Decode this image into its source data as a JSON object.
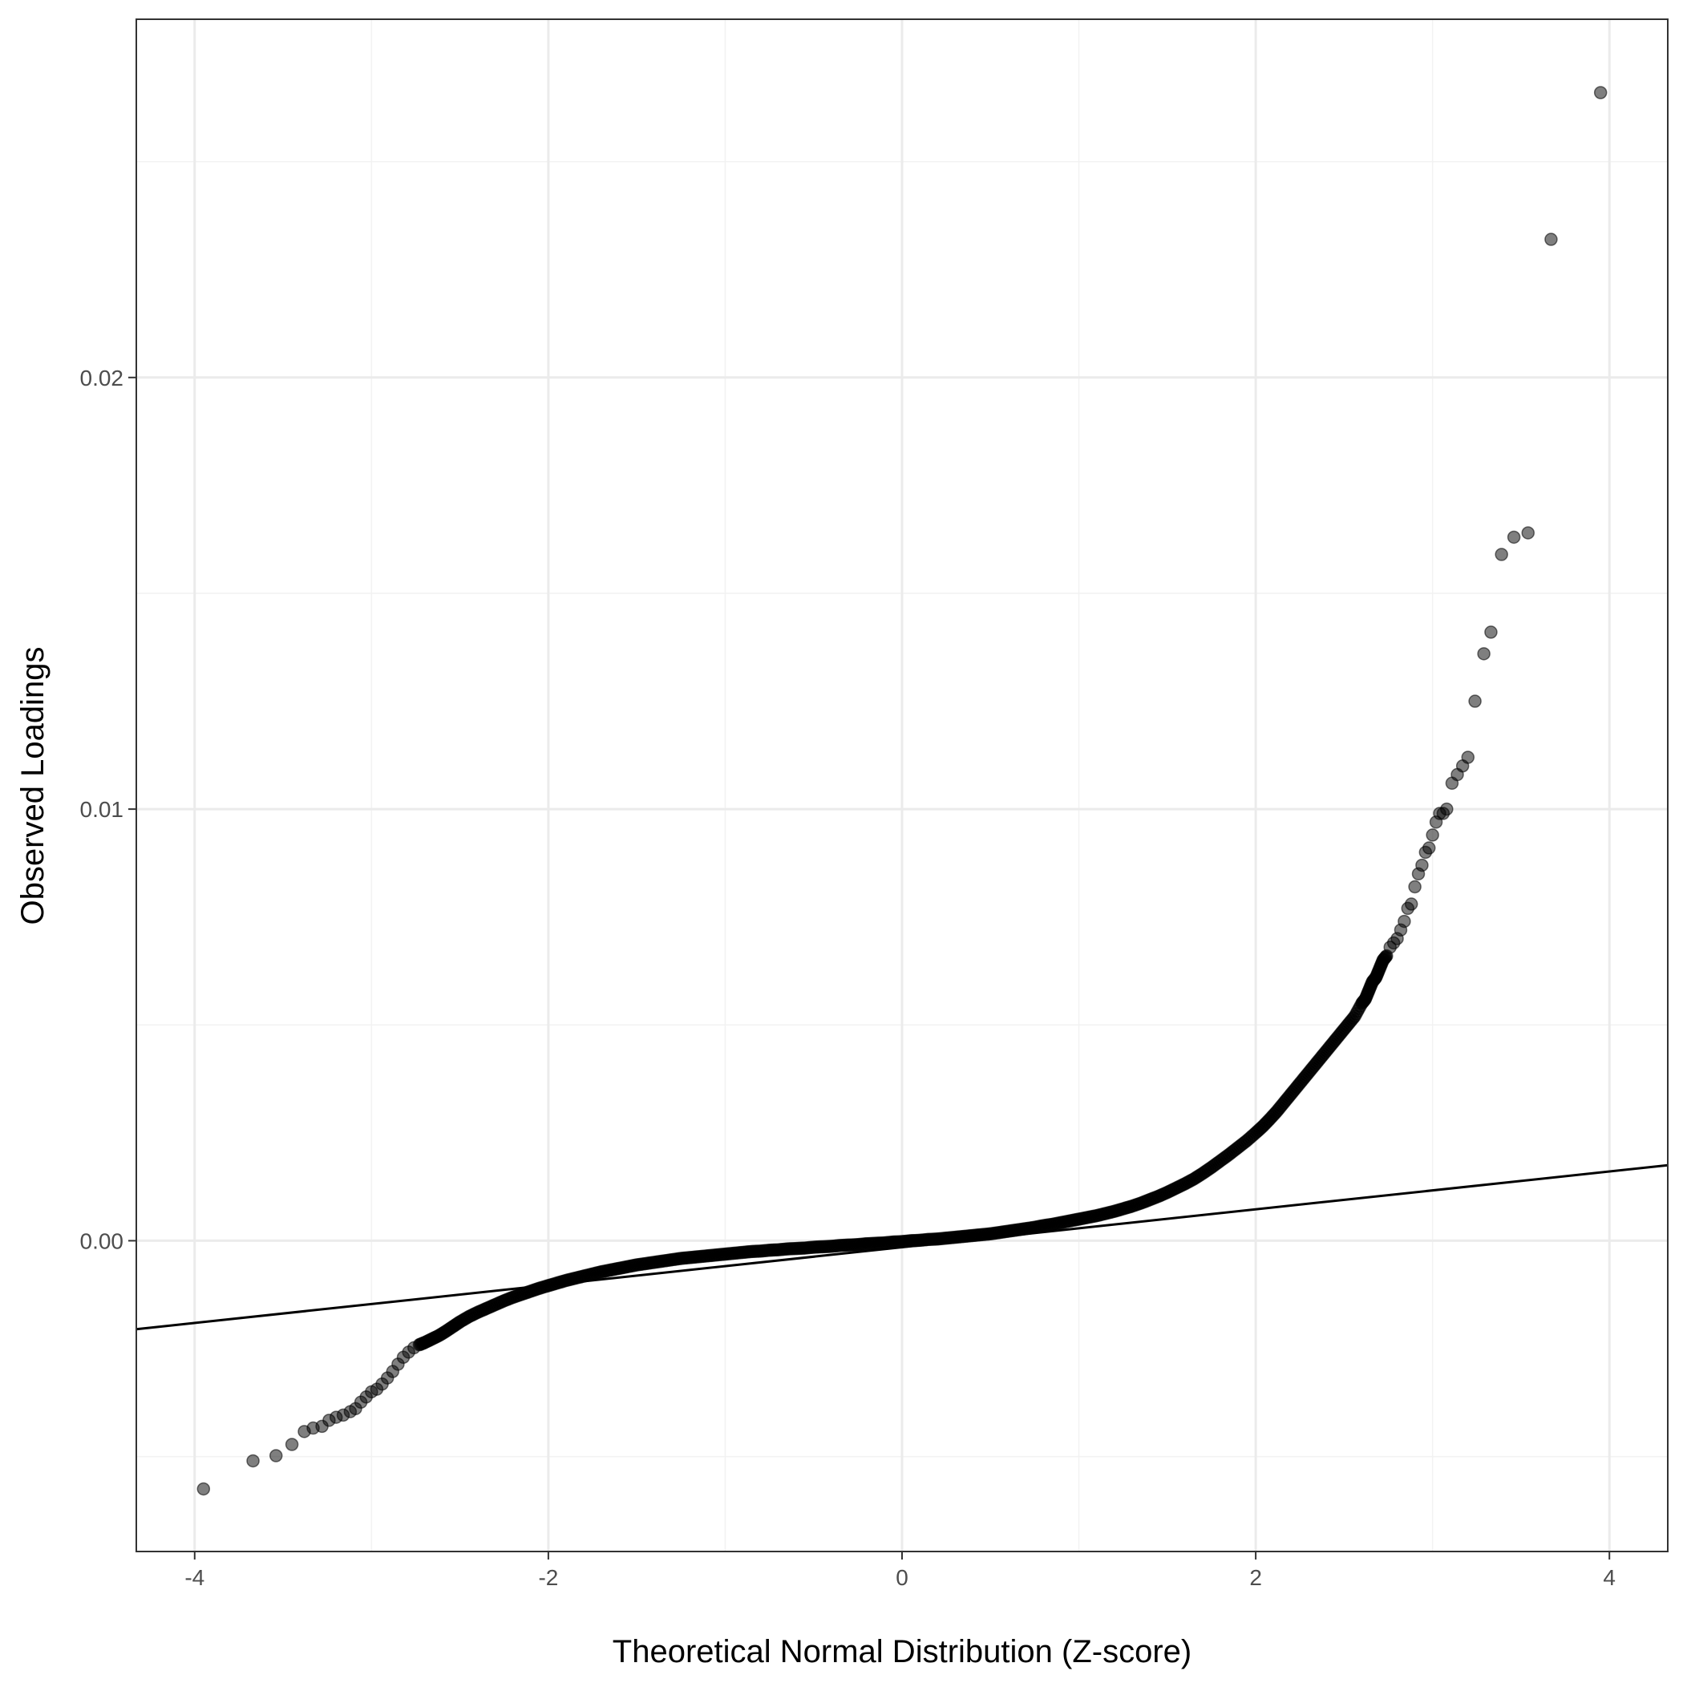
{
  "chart_data": {
    "type": "scatter",
    "title": "",
    "xlabel": "Theoretical Normal Distribution (Z-score)",
    "ylabel": "Observed Loadings",
    "xlim": [
      -4.33,
      4.33
    ],
    "ylim": [
      -0.0072,
      0.0283
    ],
    "x_ticks": [
      -4,
      -2,
      0,
      2,
      4
    ],
    "x_tick_labels": [
      "-4",
      "-2",
      "0",
      "2",
      "4"
    ],
    "y_ticks": [
      0.0,
      0.01,
      0.02
    ],
    "y_tick_labels": [
      "0.00",
      "0.01",
      "0.02"
    ],
    "grid": true,
    "legend": "none",
    "colors": {
      "points": "#000000",
      "line": "#000000",
      "grid": "#ebebeb",
      "panel_border": "#333333"
    },
    "reference_line": {
      "x": [
        -4.33,
        4.33
      ],
      "y": [
        -0.00205,
        0.00175
      ]
    },
    "points": {
      "name": "",
      "x": [
        -3.95,
        -3.67,
        -3.54,
        -3.45,
        -3.38,
        -3.33,
        -3.28,
        -3.24,
        -3.2,
        -3.16,
        -3.12,
        -3.09,
        -3.06,
        -3.03,
        -3.0,
        -2.97,
        -2.94,
        -2.91,
        -2.88,
        -2.85,
        -2.82,
        -2.79,
        -2.76,
        -2.73,
        -2.7,
        -2.66,
        -2.62,
        -2.58,
        -2.54,
        -2.5,
        -2.45,
        -2.4,
        -2.35,
        -2.3,
        -2.25,
        -2.2,
        -2.15,
        -2.1,
        -2.05,
        -2.0,
        -1.95,
        -1.9,
        -1.85,
        -1.8,
        -1.75,
        -1.7,
        -1.65,
        -1.6,
        -1.55,
        -1.5,
        -1.45,
        -1.4,
        -1.35,
        -1.3,
        -1.25,
        -1.2,
        -1.15,
        -1.1,
        -1.05,
        -1.0,
        -0.95,
        -0.9,
        -0.85,
        -0.8,
        -0.75,
        -0.7,
        -0.65,
        -0.6,
        -0.55,
        -0.5,
        -0.45,
        -0.4,
        -0.35,
        -0.3,
        -0.25,
        -0.2,
        -0.15,
        -0.1,
        -0.05,
        0.0,
        0.05,
        0.1,
        0.15,
        0.2,
        0.25,
        0.3,
        0.35,
        0.4,
        0.45,
        0.5,
        0.55,
        0.6,
        0.65,
        0.7,
        0.75,
        0.8,
        0.85,
        0.9,
        0.95,
        1.0,
        1.05,
        1.1,
        1.15,
        1.2,
        1.25,
        1.3,
        1.35,
        1.4,
        1.45,
        1.5,
        1.55,
        1.6,
        1.65,
        1.7,
        1.75,
        1.8,
        1.85,
        1.9,
        1.95,
        2.0,
        2.04,
        2.08,
        2.12,
        2.16,
        2.2,
        2.24,
        2.28,
        2.32,
        2.36,
        2.4,
        2.44,
        2.48,
        2.52,
        2.56,
        2.6,
        2.62,
        2.64,
        2.66,
        2.68,
        2.7,
        2.72,
        2.74,
        2.76,
        2.78,
        2.8,
        2.82,
        2.84,
        2.86,
        2.88,
        2.9,
        2.92,
        2.94,
        2.96,
        2.98,
        3.0,
        3.02,
        3.04,
        3.06,
        3.08,
        3.11,
        3.14,
        3.17,
        3.2,
        3.24,
        3.29,
        3.33,
        3.39,
        3.46,
        3.54,
        3.67,
        3.95
      ],
      "y": [
        -0.00575,
        -0.0051,
        -0.00498,
        -0.00472,
        -0.00442,
        -0.00434,
        -0.0043,
        -0.00416,
        -0.00409,
        -0.00404,
        -0.00396,
        -0.00389,
        -0.00374,
        -0.00362,
        -0.0035,
        -0.00344,
        -0.00332,
        -0.00318,
        -0.00303,
        -0.00286,
        -0.0027,
        -0.00258,
        -0.00248,
        -0.00241,
        -0.00236,
        -0.00228,
        -0.0022,
        -0.0021,
        -0.00199,
        -0.00188,
        -0.00176,
        -0.00166,
        -0.00157,
        -0.00148,
        -0.00139,
        -0.00131,
        -0.00124,
        -0.00117,
        -0.0011,
        -0.00104,
        -0.00098,
        -0.00092,
        -0.00087,
        -0.00082,
        -0.00077,
        -0.00072,
        -0.00068,
        -0.00064,
        -0.0006,
        -0.00056,
        -0.00053,
        -0.0005,
        -0.00047,
        -0.00044,
        -0.00041,
        -0.00039,
        -0.00037,
        -0.00035,
        -0.00033,
        -0.00031,
        -0.00029,
        -0.00027,
        -0.00025,
        -0.00024,
        -0.00022,
        -0.00021,
        -0.00019,
        -0.00018,
        -0.00017,
        -0.00015,
        -0.00014,
        -0.00013,
        -0.00011,
        -0.0001,
        -9e-05,
        -7e-05,
        -6e-05,
        -5e-05,
        -3e-05,
        -2e-05,
        0.0,
        1e-05,
        3e-05,
        4e-05,
        6e-05,
        8e-05,
        0.0001,
        0.00012,
        0.00014,
        0.00016,
        0.00019,
        0.00022,
        0.00025,
        0.00028,
        0.00031,
        0.00035,
        0.00038,
        0.00042,
        0.00046,
        0.0005,
        0.00054,
        0.00058,
        0.00063,
        0.00068,
        0.00074,
        0.0008,
        0.00087,
        0.00095,
        0.00103,
        0.00112,
        0.00122,
        0.00132,
        0.00143,
        0.00156,
        0.0017,
        0.00185,
        0.002,
        0.00216,
        0.00232,
        0.0025,
        0.00265,
        0.00282,
        0.003,
        0.0032,
        0.0034,
        0.0036,
        0.0038,
        0.004,
        0.0042,
        0.0044,
        0.0046,
        0.0048,
        0.005,
        0.0052,
        0.0055,
        0.0056,
        0.0058,
        0.006,
        0.0061,
        0.0063,
        0.0065,
        0.0066,
        0.0068,
        0.0069,
        0.007,
        0.0072,
        0.0074,
        0.0077,
        0.0078,
        0.0082,
        0.0085,
        0.0087,
        0.009,
        0.0091,
        0.0094,
        0.0097,
        0.0099,
        0.0099,
        0.01,
        0.0106,
        0.0108,
        0.011,
        0.0112,
        0.0125,
        0.0136,
        0.0141,
        0.0159,
        0.0163,
        0.0164,
        0.0232,
        0.0266
      ]
    }
  }
}
